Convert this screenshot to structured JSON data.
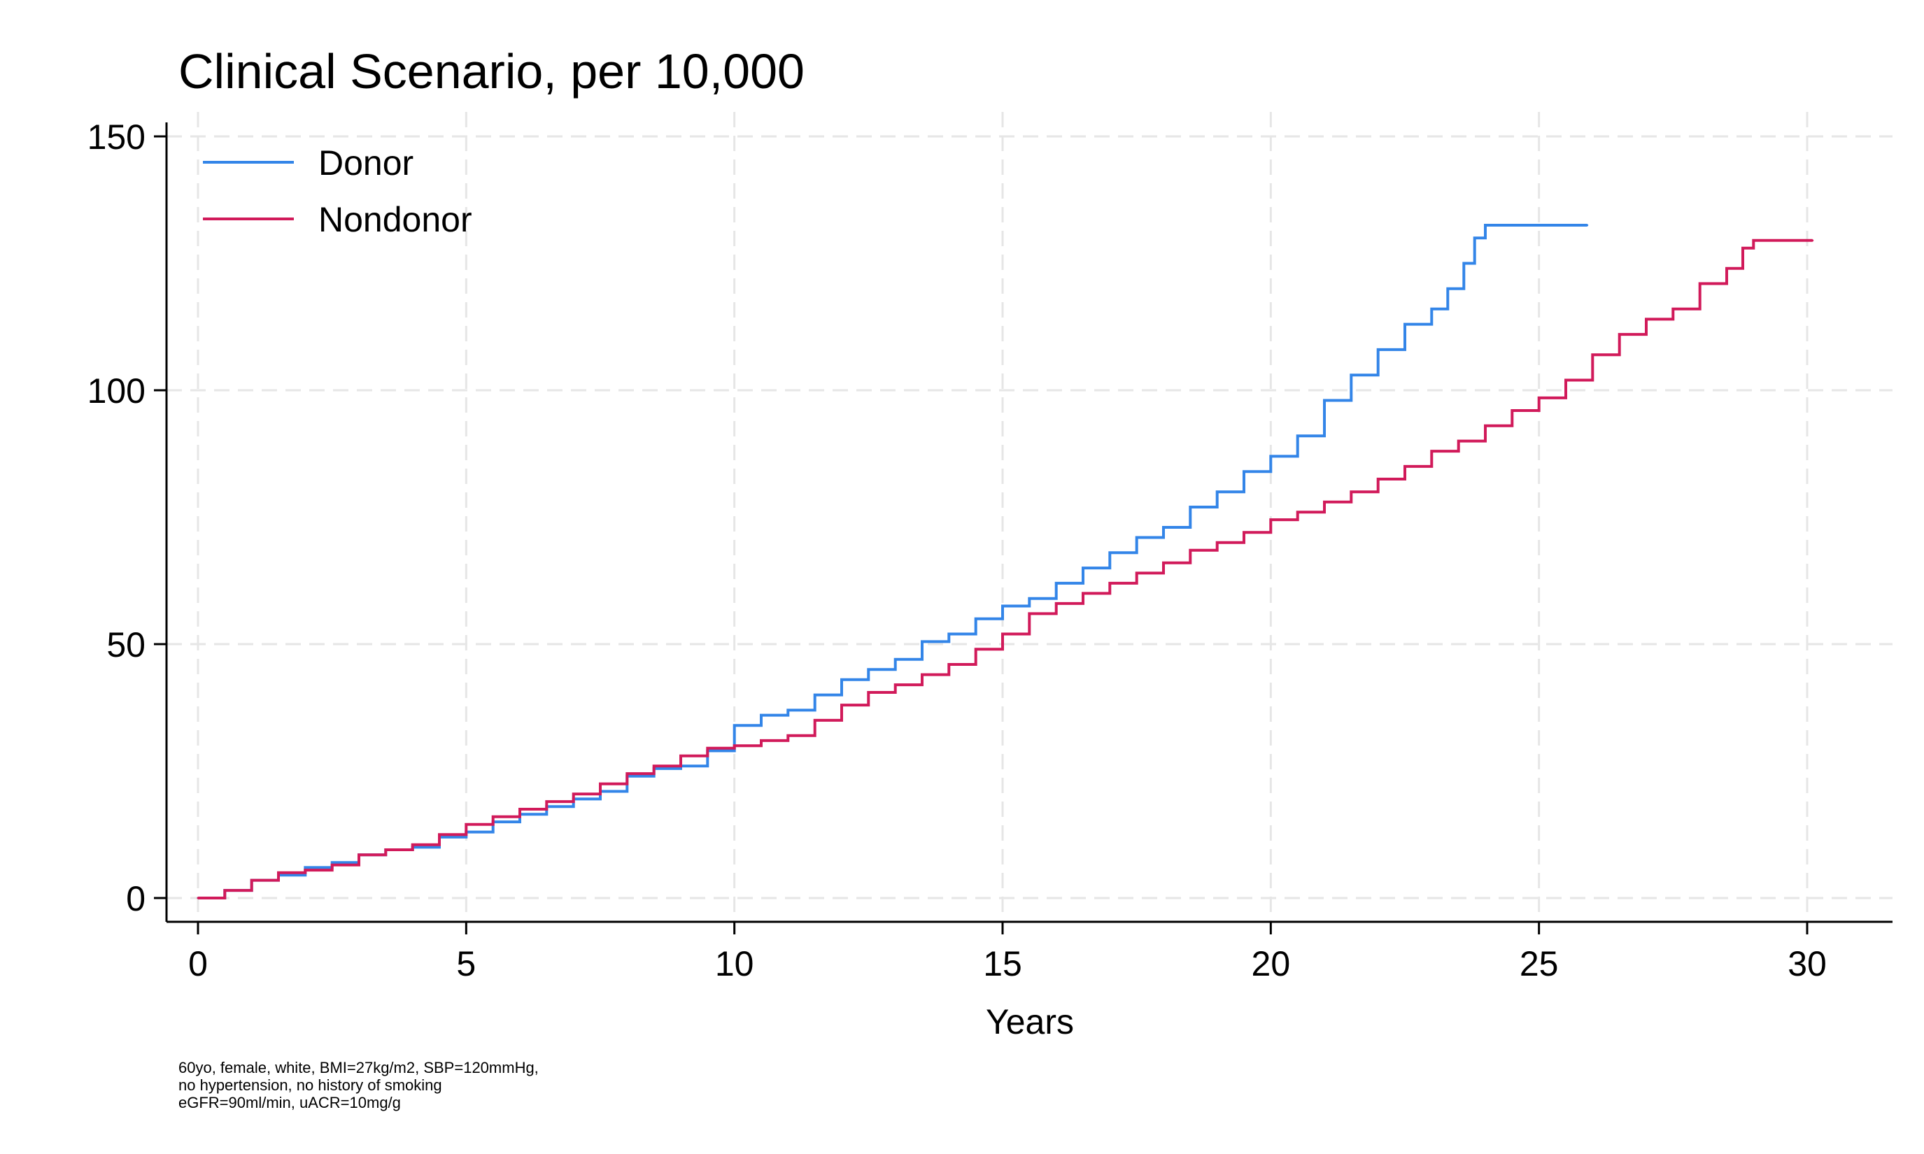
{
  "chart_data": {
    "type": "line",
    "step": true,
    "title": "Clinical Scenario, per 10,000",
    "xlabel": "Years",
    "ylabel": "",
    "xlim": [
      0,
      31.5
    ],
    "ylim": [
      -4.5,
      155
    ],
    "xticks": [
      0,
      5,
      10,
      15,
      20,
      25,
      30
    ],
    "yticks": [
      0,
      50,
      100,
      150
    ],
    "xtick_labels": [
      "0",
      "5",
      "10",
      "15",
      "20",
      "25",
      "30"
    ],
    "ytick_labels": [
      "0",
      "50",
      "100",
      "150"
    ],
    "grid": true,
    "legend_position": "top-left",
    "series": [
      {
        "name": "Donor",
        "color": "#3385e8",
        "x": [
          0,
          0.5,
          1,
          1.5,
          2,
          2.5,
          3,
          3.5,
          4,
          4.5,
          5,
          5.5,
          6,
          6.5,
          7,
          7.5,
          8,
          8.5,
          9,
          9.5,
          10,
          10.5,
          11,
          11.5,
          12,
          12.5,
          13,
          13.5,
          14,
          14.5,
          15,
          15.5,
          16,
          16.5,
          17,
          17.5,
          18,
          18.5,
          19,
          19.5,
          20,
          20.5,
          21,
          21.5,
          22,
          22.5,
          23,
          23.3,
          23.6,
          23.8,
          24,
          24.5,
          25,
          25.5,
          25.9
        ],
        "y": [
          0,
          1.5,
          3.5,
          4.5,
          6,
          7,
          8.5,
          9.5,
          10,
          12,
          13,
          15,
          16.5,
          18,
          19.5,
          21,
          24,
          25.5,
          26,
          29,
          34,
          36,
          37,
          40,
          43,
          45,
          47,
          50.5,
          52,
          55,
          57.5,
          59,
          62,
          65,
          68,
          71,
          73,
          77,
          80,
          84,
          87,
          91,
          98,
          103,
          108,
          113,
          116,
          120,
          125,
          130,
          132.5,
          132.5,
          132.5,
          132.5,
          132.5
        ]
      },
      {
        "name": "Nondonor",
        "color": "#d11a5a",
        "x": [
          0,
          0.5,
          1,
          1.5,
          2,
          2.5,
          3,
          3.5,
          4,
          4.5,
          5,
          5.5,
          6,
          6.5,
          7,
          7.5,
          8,
          8.5,
          9,
          9.5,
          10,
          10.5,
          11,
          11.5,
          12,
          12.5,
          13,
          13.5,
          14,
          14.5,
          15,
          15.5,
          16,
          16.5,
          17,
          17.5,
          18,
          18.5,
          19,
          19.5,
          20,
          20.5,
          21,
          21.5,
          22,
          22.5,
          23,
          23.5,
          24,
          24.5,
          25,
          25.5,
          26,
          26.5,
          27,
          27.5,
          28,
          28.5,
          28.8,
          29,
          29.5,
          30,
          30.1
        ],
        "y": [
          0,
          1.5,
          3.5,
          5,
          5.5,
          6.5,
          8.5,
          9.5,
          10.5,
          12.5,
          14.5,
          16,
          17.5,
          19,
          20.5,
          22.5,
          24.5,
          26,
          28,
          29.5,
          30,
          31,
          32,
          35,
          38,
          40.5,
          42,
          44,
          46,
          49,
          52,
          56,
          58,
          60,
          62,
          64,
          66,
          68.5,
          70,
          72,
          74.5,
          76,
          78,
          80,
          82.5,
          85,
          88,
          90,
          93,
          96,
          98.5,
          102,
          107,
          111,
          114,
          116,
          121,
          124,
          128,
          129.5,
          129.5,
          129.5,
          129.5
        ]
      }
    ],
    "note": [
      "60yo, female, white, BMI=27kg/m2, SBP=120mmHg,",
      "no hypertension, no history of smoking",
      "eGFR=90ml/min, uACR=10mg/g"
    ]
  }
}
